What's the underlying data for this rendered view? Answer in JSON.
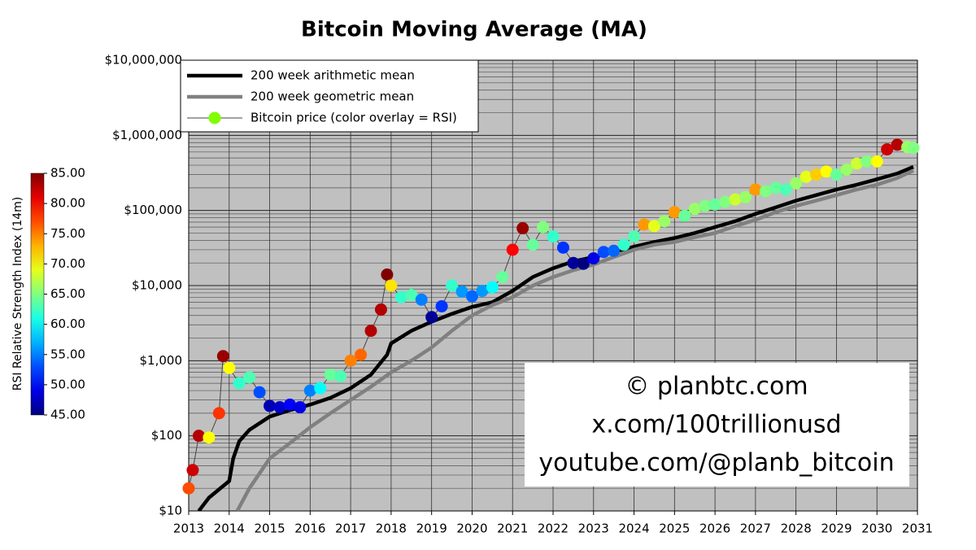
{
  "chart_data": {
    "type": "scatter-log",
    "title": "Bitcoin Moving Average (MA)",
    "annotations": [
      "© planbtc.com",
      "x.com/100trillionusd",
      "youtube.com/@planb_bitcoin"
    ],
    "y_log": true,
    "grid": true,
    "minor_grid": true,
    "legend": "upper left",
    "xlim": [
      2013,
      2031
    ],
    "xticks": [
      2013,
      2014,
      2015,
      2016,
      2017,
      2018,
      2019,
      2020,
      2021,
      2022,
      2023,
      2024,
      2025,
      2026,
      2027,
      2028,
      2029,
      2030,
      2031
    ],
    "ylim": [
      10,
      10000000
    ],
    "yticks": [
      {
        "value": 10,
        "label": "$10"
      },
      {
        "value": 100,
        "label": "$100"
      },
      {
        "value": 1000,
        "label": "$1,000"
      },
      {
        "value": 10000,
        "label": "$10,000"
      },
      {
        "value": 100000,
        "label": "$100,000"
      },
      {
        "value": 1000000,
        "label": "$1,000,000"
      },
      {
        "value": 10000000,
        "label": "$10,000,000"
      }
    ],
    "colorbar": {
      "label": "RSI Relative Strength Index (14m)",
      "lim": [
        45,
        85
      ],
      "colormap": "jet",
      "ticks": [
        {
          "value": 45,
          "label": "45.00"
        },
        {
          "value": 50,
          "label": "50.00"
        },
        {
          "value": 55,
          "label": "55.00"
        },
        {
          "value": 60,
          "label": "60.00"
        },
        {
          "value": 65,
          "label": "65.00"
        },
        {
          "value": 70,
          "label": "70.00"
        },
        {
          "value": 75,
          "label": "75.00"
        },
        {
          "value": 80,
          "label": "80.00"
        },
        {
          "value": 85,
          "label": "85.00"
        }
      ]
    },
    "series": [
      {
        "name": "200 week arithmetic mean",
        "kind": "line",
        "color": "#000000",
        "x": [
          2013.25,
          2013.5,
          2014.0,
          2014.1,
          2014.25,
          2014.5,
          2015.0,
          2015.5,
          2016.0,
          2016.5,
          2017.0,
          2017.5,
          2017.9,
          2018.0,
          2018.5,
          2019.0,
          2019.5,
          2020.0,
          2020.5,
          2021.0,
          2021.5,
          2022.0,
          2022.5,
          2023.0,
          2023.5,
          2024.0,
          2024.5,
          2025.0,
          2025.5,
          2026.0,
          2026.5,
          2027.0,
          2027.5,
          2028.0,
          2028.5,
          2029.0,
          2029.5,
          2030.0,
          2030.5,
          2030.9
        ],
        "values": [
          10,
          15,
          25,
          50,
          85,
          120,
          180,
          220,
          260,
          320,
          430,
          650,
          1200,
          1700,
          2500,
          3300,
          4200,
          5200,
          6000,
          8500,
          13000,
          17000,
          21000,
          24000,
          28000,
          33000,
          38000,
          43000,
          50000,
          60000,
          72000,
          90000,
          110000,
          135000,
          160000,
          190000,
          220000,
          260000,
          310000,
          380000
        ]
      },
      {
        "name": "200 week geometric mean",
        "kind": "line",
        "color": "#808080",
        "x": [
          2014.2,
          2014.5,
          2015.0,
          2015.5,
          2016.0,
          2016.5,
          2017.0,
          2017.5,
          2018.0,
          2018.5,
          2019.0,
          2019.5,
          2020.0,
          2020.5,
          2021.0,
          2021.5,
          2022.0,
          2022.5,
          2023.0,
          2023.5,
          2024.0,
          2024.5,
          2025.0,
          2025.5,
          2026.0,
          2026.5,
          2027.0,
          2027.5,
          2028.0,
          2028.5,
          2029.0,
          2029.5,
          2030.0,
          2030.5,
          2030.9
        ],
        "values": [
          10,
          20,
          50,
          80,
          130,
          200,
          300,
          450,
          700,
          1000,
          1500,
          2500,
          4000,
          5500,
          7000,
          10000,
          13000,
          16000,
          19000,
          24000,
          30000,
          35000,
          38000,
          44000,
          50000,
          62000,
          75000,
          95000,
          115000,
          135000,
          160000,
          190000,
          220000,
          270000,
          340000
        ]
      },
      {
        "name": "Bitcoin price (color overlay = RSI)",
        "kind": "points",
        "color": "#7fff00",
        "x": [
          2013.0,
          2013.1,
          2013.25,
          2013.5,
          2013.75,
          2013.85,
          2014.0,
          2014.25,
          2014.5,
          2014.75,
          2015.0,
          2015.25,
          2015.5,
          2015.75,
          2016.0,
          2016.25,
          2016.5,
          2016.75,
          2017.0,
          2017.25,
          2017.5,
          2017.75,
          2017.9,
          2018.0,
          2018.25,
          2018.5,
          2018.75,
          2019.0,
          2019.25,
          2019.5,
          2019.75,
          2020.0,
          2020.25,
          2020.5,
          2020.75,
          2021.0,
          2021.25,
          2021.5,
          2021.75,
          2022.0,
          2022.25,
          2022.5,
          2022.75,
          2023.0,
          2023.25,
          2023.5,
          2023.75,
          2024.0,
          2024.25,
          2024.5,
          2024.75,
          2025.0,
          2025.25,
          2025.5,
          2025.75,
          2026.0,
          2026.25,
          2026.5,
          2026.75,
          2027.0,
          2027.25,
          2027.5,
          2027.75,
          2028.0,
          2028.25,
          2028.5,
          2028.75,
          2029.0,
          2029.25,
          2029.5,
          2029.75,
          2030.0,
          2030.25,
          2030.5,
          2030.75,
          2030.9
        ],
        "values": [
          20,
          35,
          100,
          95,
          200,
          1150,
          800,
          500,
          600,
          380,
          250,
          240,
          260,
          240,
          400,
          430,
          650,
          620,
          1000,
          1200,
          2500,
          4800,
          14000,
          10000,
          7000,
          7500,
          6500,
          3800,
          5300,
          10000,
          8300,
          7200,
          8500,
          9500,
          13000,
          30000,
          58000,
          35000,
          60000,
          45000,
          32000,
          20000,
          19500,
          23000,
          28000,
          29000,
          35000,
          45000,
          65000,
          62000,
          72000,
          95000,
          85000,
          105000,
          115000,
          120000,
          130000,
          140000,
          150000,
          190000,
          180000,
          200000,
          190000,
          230000,
          280000,
          300000,
          330000,
          300000,
          350000,
          420000,
          450000,
          450000,
          650000,
          750000,
          700000,
          680000
        ],
        "rsi": [
          77,
          82,
          83,
          70,
          78,
          84,
          70,
          62,
          63,
          53,
          47,
          48,
          50,
          49,
          55,
          60,
          64,
          63,
          75,
          76,
          83,
          83,
          85,
          71,
          62,
          63,
          55,
          46,
          52,
          62,
          56,
          54,
          56,
          60,
          64,
          80,
          84,
          64,
          65,
          62,
          52,
          46,
          45,
          49,
          53,
          54,
          62,
          63,
          74,
          69,
          66,
          74,
          64,
          66,
          65,
          64,
          65,
          68,
          66,
          74,
          65,
          64,
          63,
          66,
          69,
          72,
          70,
          64,
          66,
          68,
          65,
          70,
          82,
          83,
          66,
          65
        ]
      }
    ]
  }
}
